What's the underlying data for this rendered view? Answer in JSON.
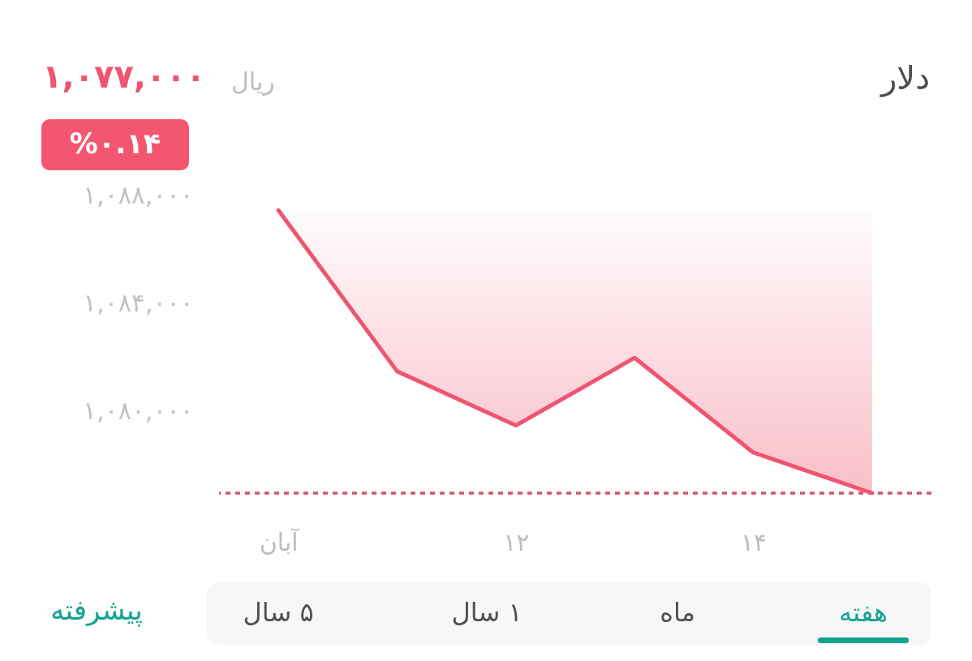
{
  "chart_data": {
    "type": "line",
    "title": "دلار",
    "subtitle": "۱,۰۷۷,۰۰۰",
    "annotations": [
      "ریال",
      "%۰.۱۴",
      "هفته",
      "ماه",
      "۱ سال",
      "۵ سال",
      "پیشرفته"
    ],
    "categories": [
      "آبان",
      null,
      "۱۲",
      null,
      "۱۴",
      null
    ],
    "series": [
      {
        "color": "#ef5470",
        "values": [
          1087450,
          1081500,
          1079500,
          1082000,
          1078500,
          1077000
        ],
        "lower": [
          1087450,
          1081500,
          1079500,
          1082000,
          1078500,
          1077000
        ],
        "upper": [
          1087450,
          1087450,
          1087450,
          1087450,
          1087450,
          1087450
        ]
      }
    ],
    "ylim": [
      1077000,
      1088000
    ],
    "yticks": [
      {
        "value": 1080000,
        "label": "۱,۰۸۰,۰۰۰"
      },
      {
        "value": 1084000,
        "label": "۱,۰۸۴,۰۰۰"
      },
      {
        "value": 1088000,
        "label": "۱,۰۸۸,۰۰۰"
      }
    ],
    "ref_lines": [
      {
        "axis": "y",
        "value": 1077000,
        "color": "#d45a70",
        "line_style": "dashed"
      }
    ],
    "grid": false
  }
}
